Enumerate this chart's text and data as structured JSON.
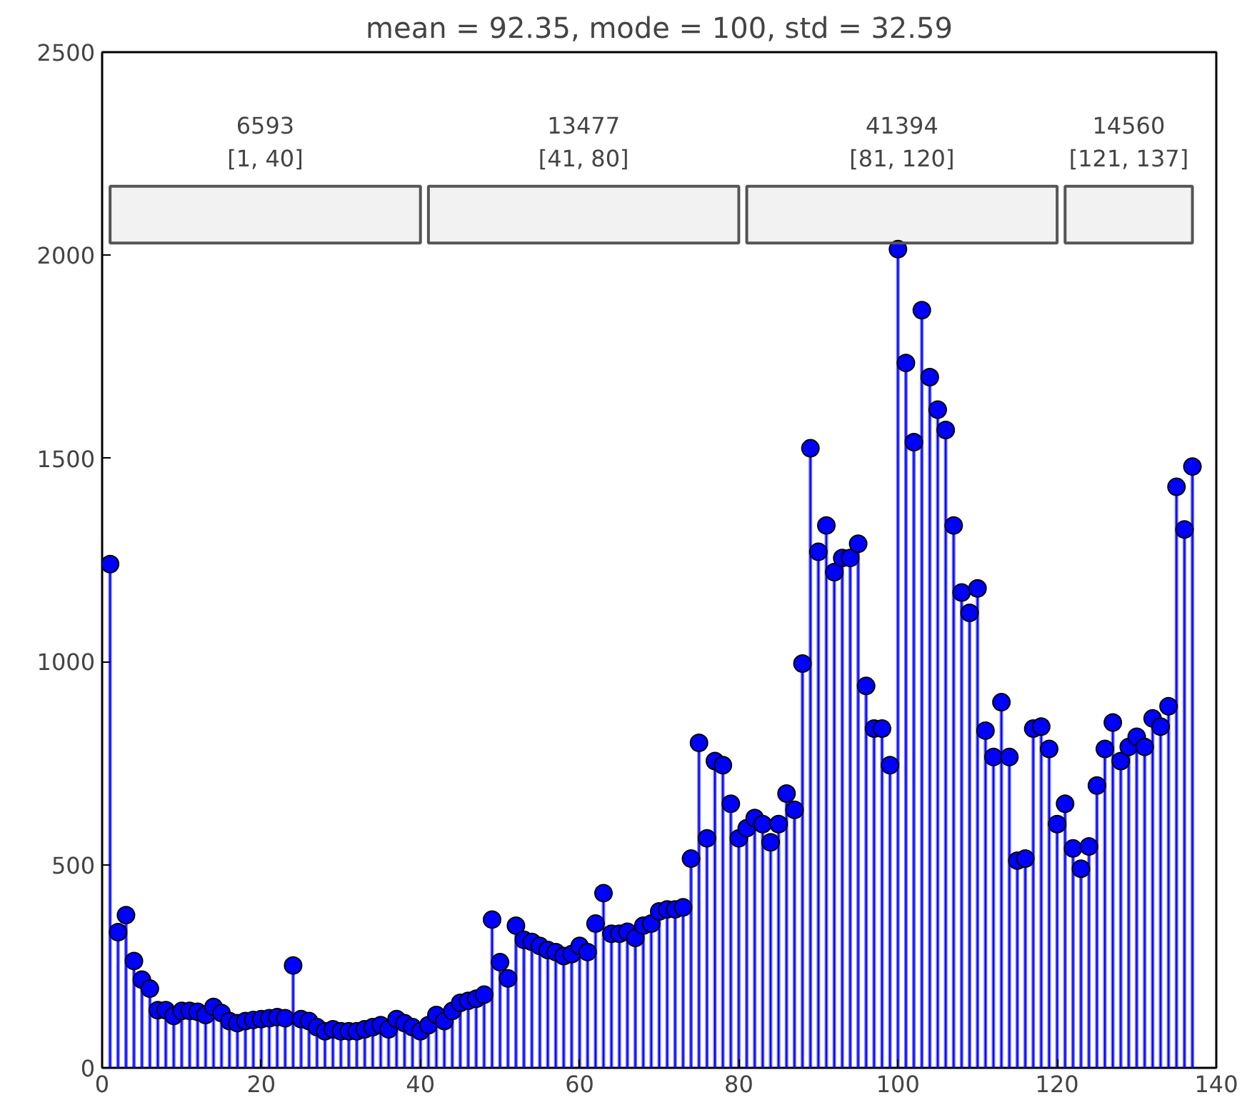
{
  "chart_data": {
    "type": "lollipop",
    "title": "mean = 92.35, mode = 100, std = 32.59",
    "x": [
      1,
      2,
      3,
      4,
      5,
      6,
      7,
      8,
      9,
      10,
      11,
      12,
      13,
      14,
      15,
      16,
      17,
      18,
      19,
      20,
      21,
      22,
      23,
      24,
      25,
      26,
      27,
      28,
      29,
      30,
      31,
      32,
      33,
      34,
      35,
      36,
      37,
      38,
      39,
      40,
      41,
      42,
      43,
      44,
      45,
      46,
      47,
      48,
      49,
      50,
      51,
      52,
      53,
      54,
      55,
      56,
      57,
      58,
      59,
      60,
      61,
      62,
      63,
      64,
      65,
      66,
      67,
      68,
      69,
      70,
      71,
      72,
      73,
      74,
      75,
      76,
      77,
      78,
      79,
      80,
      81,
      82,
      83,
      84,
      85,
      86,
      87,
      88,
      89,
      90,
      91,
      92,
      93,
      94,
      95,
      96,
      97,
      98,
      99,
      100,
      101,
      102,
      103,
      104,
      105,
      106,
      107,
      108,
      109,
      110,
      111,
      112,
      113,
      114,
      115,
      116,
      117,
      118,
      119,
      120,
      121,
      122,
      123,
      124,
      125,
      126,
      127,
      128,
      129,
      130,
      131,
      132,
      133,
      134,
      135,
      136,
      137
    ],
    "series": [
      {
        "color": "#0000ff",
        "values": [
          1240,
          334,
          376,
          263,
          217,
          195,
          142,
          142,
          128,
          140,
          140,
          138,
          130,
          150,
          135,
          115,
          110,
          115,
          118,
          120,
          122,
          125,
          122,
          252,
          120,
          115,
          100,
          90,
          95,
          90,
          90,
          90,
          95,
          100,
          105,
          95,
          120,
          110,
          100,
          90,
          105,
          130,
          115,
          140,
          160,
          165,
          170,
          180,
          365,
          260,
          220,
          350,
          315,
          310,
          300,
          290,
          285,
          275,
          280,
          300,
          285,
          355,
          430,
          330,
          330,
          335,
          320,
          350,
          355,
          385,
          390,
          390,
          395,
          515,
          800,
          565,
          755,
          745,
          650,
          565,
          590,
          615,
          600,
          555,
          600,
          675,
          635,
          995,
          1525,
          1270,
          1335,
          1220,
          1255,
          1255,
          1290,
          940,
          835,
          835,
          745,
          2015,
          1735,
          1540,
          1865,
          1700,
          1620,
          1570,
          1335,
          1170,
          1120,
          1180,
          830,
          765,
          900,
          765,
          510,
          515,
          835,
          840,
          785,
          600,
          650,
          540,
          490,
          545,
          695,
          785,
          850,
          755,
          790,
          815,
          790,
          860,
          840,
          890,
          1430,
          1325,
          1480
        ]
      }
    ],
    "xlim": [
      0,
      140
    ],
    "ylim": [
      0,
      2500
    ],
    "xticks": [
      0,
      20,
      40,
      60,
      80,
      100,
      120,
      140
    ],
    "yticks": [
      0,
      500,
      1000,
      1500,
      2000,
      2500
    ],
    "marker": "circle",
    "grid": false,
    "bands": [
      {
        "axis": "x",
        "from": 1,
        "to": 40,
        "label": "6593\n[1, 40]",
        "color": "#555555"
      },
      {
        "axis": "x",
        "from": 41,
        "to": 80,
        "label": "13477\n[41, 80]",
        "color": "#555555"
      },
      {
        "axis": "x",
        "from": 81,
        "to": 120,
        "label": "41394\n[81, 120]",
        "color": "#555555"
      },
      {
        "axis": "x",
        "from": 121,
        "to": 137,
        "label": "14560\n[121, 137]",
        "color": "#555555"
      }
    ]
  }
}
